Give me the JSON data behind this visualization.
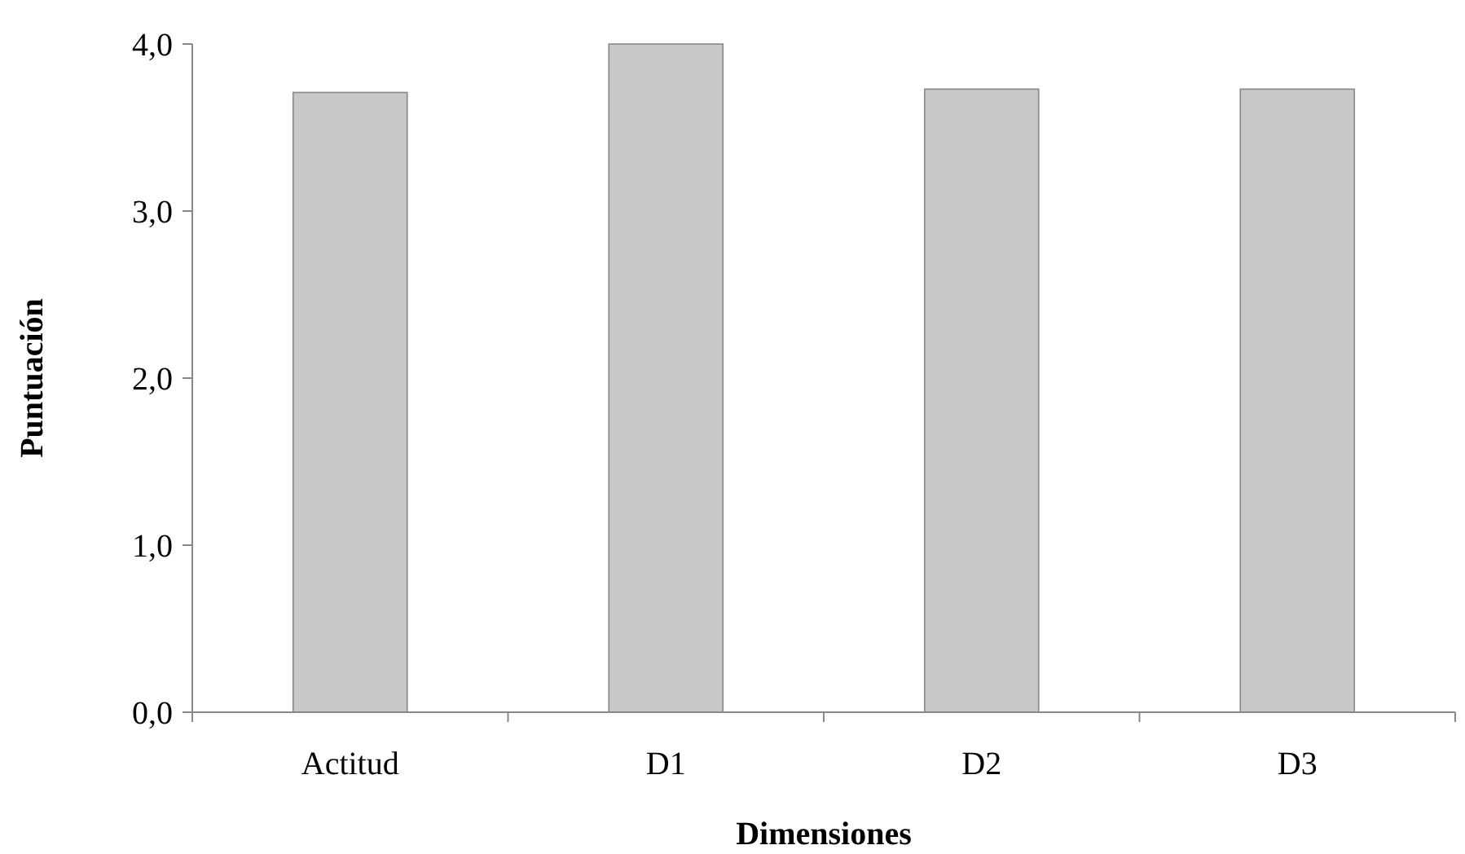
{
  "chart_data": {
    "type": "bar",
    "xlabel": "Dimensiones",
    "ylabel": "Puntuación",
    "categories": [
      "Actitud",
      "D1",
      "D2",
      "D3"
    ],
    "values": [
      3.71,
      4.0,
      3.73,
      3.73
    ],
    "color": "#c8c8c8",
    "ylim": [
      0,
      4
    ],
    "yticks": [
      {
        "value": 0,
        "label": "0,0"
      },
      {
        "value": 1,
        "label": "1,0"
      },
      {
        "value": 2,
        "label": "2,0"
      },
      {
        "value": 3,
        "label": "3,0"
      },
      {
        "value": 4,
        "label": "4,0"
      }
    ],
    "grid": false
  }
}
